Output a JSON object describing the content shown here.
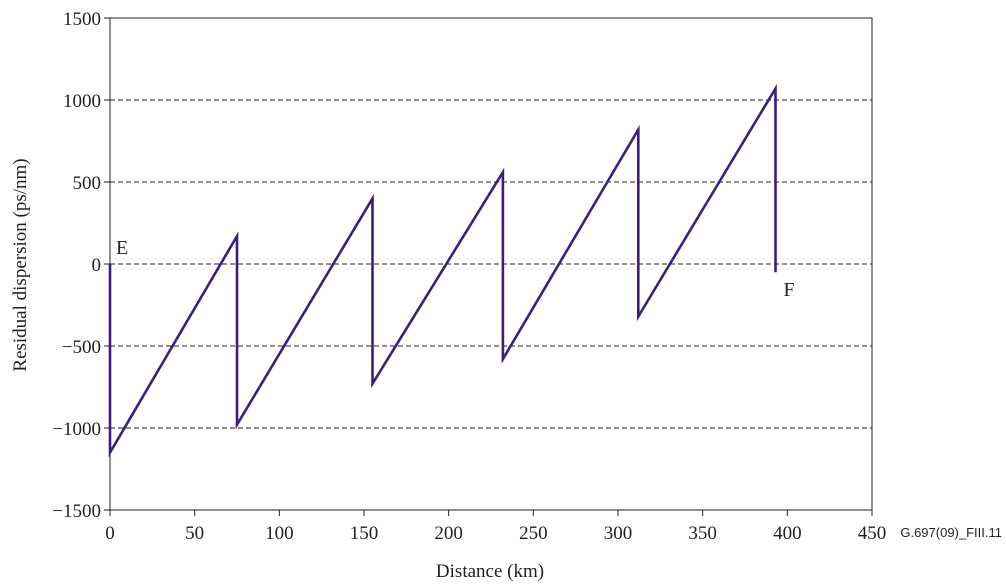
{
  "chart_data": {
    "type": "line",
    "xlabel": "Distance (km)",
    "ylabel": "Residual dispersion (ps/nm)",
    "xlim": [
      0,
      450
    ],
    "ylim": [
      -1500,
      1500
    ],
    "x_ticks": [
      0,
      50,
      100,
      150,
      200,
      250,
      300,
      350,
      400,
      450
    ],
    "y_ticks": [
      -1500,
      -1000,
      -500,
      0,
      500,
      1000,
      1500
    ],
    "x_tick_labels": [
      "0",
      "50",
      "100",
      "150",
      "200",
      "250",
      "300",
      "350",
      "400",
      "450"
    ],
    "y_tick_labels": [
      "−1500",
      "−1000",
      "−500",
      "0",
      "500",
      "1000",
      "1500"
    ],
    "grid": "horizontal dashed at -1000, -500, 0, 500, 1000",
    "series": [
      {
        "color": "#3d1f7a",
        "points": [
          [
            0,
            0
          ],
          [
            0,
            -1150
          ],
          [
            75,
            170
          ],
          [
            75,
            -980
          ],
          [
            155,
            400
          ],
          [
            155,
            -730
          ],
          [
            232,
            560
          ],
          [
            232,
            -580
          ],
          [
            312,
            820
          ],
          [
            312,
            -320
          ],
          [
            393,
            1070
          ],
          [
            393,
            -50
          ]
        ]
      }
    ],
    "annotations": [
      {
        "text": "E",
        "x": 0,
        "y": 0
      },
      {
        "text": "F",
        "x": 393,
        "y": -50
      }
    ],
    "figure_id": "G.697(09)_FIII.11"
  }
}
